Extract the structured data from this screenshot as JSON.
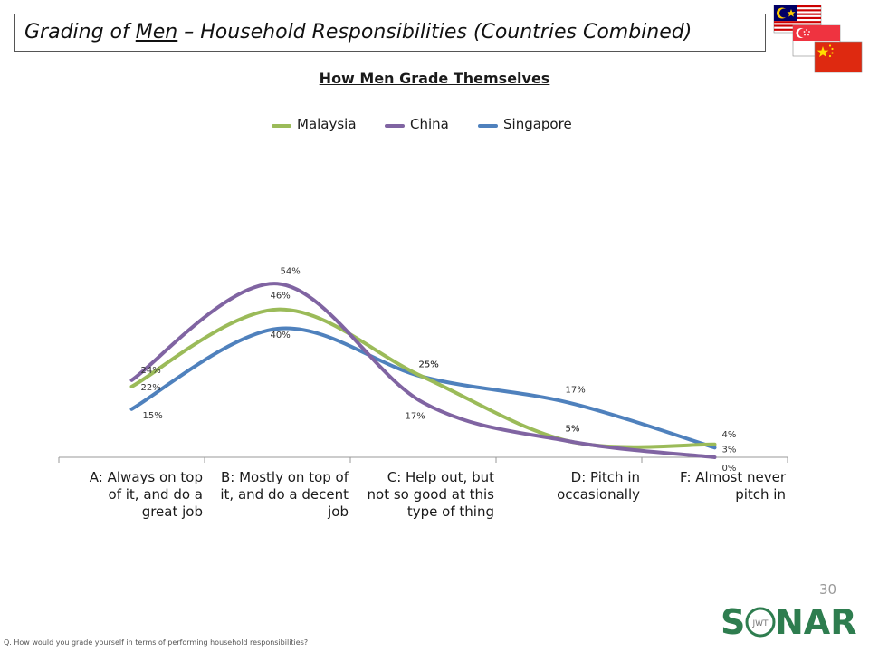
{
  "header": {
    "title_prefix": "Grading of ",
    "title_emphasis": "Men",
    "title_suffix": " – Household Responsibilities (Countries Combined)"
  },
  "flags": {
    "colors": {
      "malaysia_red": "#cc0001",
      "malaysia_blue": "#010066",
      "singapore_red": "#ef3340",
      "china_red": "#de2910",
      "china_star": "#ffde00"
    }
  },
  "chart_data": {
    "type": "line",
    "title": "How Men Grade Themselves",
    "categories": [
      [
        "A: Always on top",
        "of it, and do a",
        "great job"
      ],
      [
        "B: Mostly on top of",
        "it, and do a decent",
        "job"
      ],
      [
        "C: Help out, but",
        "not so good at this",
        "type of thing"
      ],
      [
        "D: Pitch in",
        "occasionally"
      ],
      [
        "F: Almost never",
        "pitch in"
      ]
    ],
    "series": [
      {
        "name": "Malaysia",
        "color": "#9bbb59",
        "values": [
          22,
          46,
          25,
          5,
          4
        ],
        "labels": [
          "22%",
          "46%",
          "25%",
          "5%",
          "4%"
        ]
      },
      {
        "name": "China",
        "color": "#8064a2",
        "values": [
          24,
          54,
          17,
          5,
          0
        ],
        "labels": [
          "24%",
          "54%",
          "17%",
          "5%",
          "0%"
        ]
      },
      {
        "name": "Singapore",
        "color": "#4f81bd",
        "values": [
          15,
          40,
          25,
          17,
          3
        ],
        "labels": [
          "15%",
          "40%",
          "25%",
          "17%",
          "3%"
        ]
      }
    ],
    "ylim": [
      0,
      75
    ],
    "legend_position": "top",
    "grid": false,
    "smooth": true
  },
  "footer": {
    "page_number": "30",
    "question": "Q. How would you grade yourself in terms of performing household responsibilities?",
    "logo_text_left": "S",
    "logo_text_right": "NAR",
    "logo_ring_text": "JWT",
    "logo_color": "#2e7d4f"
  }
}
